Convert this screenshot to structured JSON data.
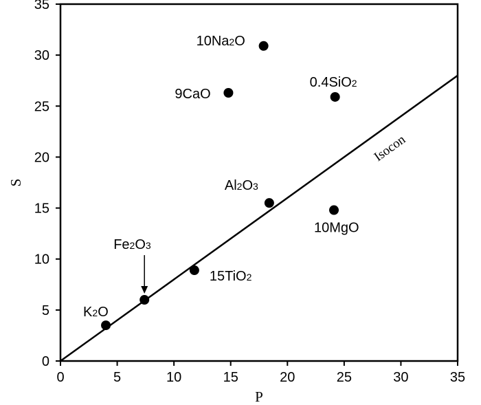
{
  "chart_data": {
    "type": "scatter",
    "title": "",
    "xlabel": "P",
    "ylabel": "S",
    "xlim": [
      0,
      35
    ],
    "ylim": [
      0,
      35
    ],
    "grid": false,
    "legend": "none",
    "x_ticks": [
      "0",
      "5",
      "10",
      "15",
      "20",
      "25",
      "30",
      "35"
    ],
    "y_ticks": [
      "0",
      "5",
      "10",
      "15",
      "20",
      "25",
      "30",
      "35"
    ],
    "points": [
      {
        "label": "K2O",
        "x": 4.0,
        "y": 3.5
      },
      {
        "label": "Fe2O3",
        "x": 7.4,
        "y": 6.0
      },
      {
        "label": "15TiO2",
        "x": 11.8,
        "y": 8.9
      },
      {
        "label": "Al2O3",
        "x": 18.4,
        "y": 15.5
      },
      {
        "label": "9CaO",
        "x": 14.8,
        "y": 26.3
      },
      {
        "label": "10Na2O",
        "x": 17.9,
        "y": 30.9
      },
      {
        "label": "0.4SiO2",
        "x": 24.2,
        "y": 25.9
      },
      {
        "label": "10MgO",
        "x": 24.1,
        "y": 14.8
      }
    ],
    "isocon": {
      "label": "Isocon",
      "x": [
        0,
        35
      ],
      "y": [
        0,
        28
      ]
    },
    "annotations": [
      {
        "text": "Fe2O3 arrow",
        "points_to": "Fe2O3"
      }
    ],
    "colors": {
      "marker": "#000000",
      "line": "#000000",
      "background": "#ffffff"
    }
  }
}
